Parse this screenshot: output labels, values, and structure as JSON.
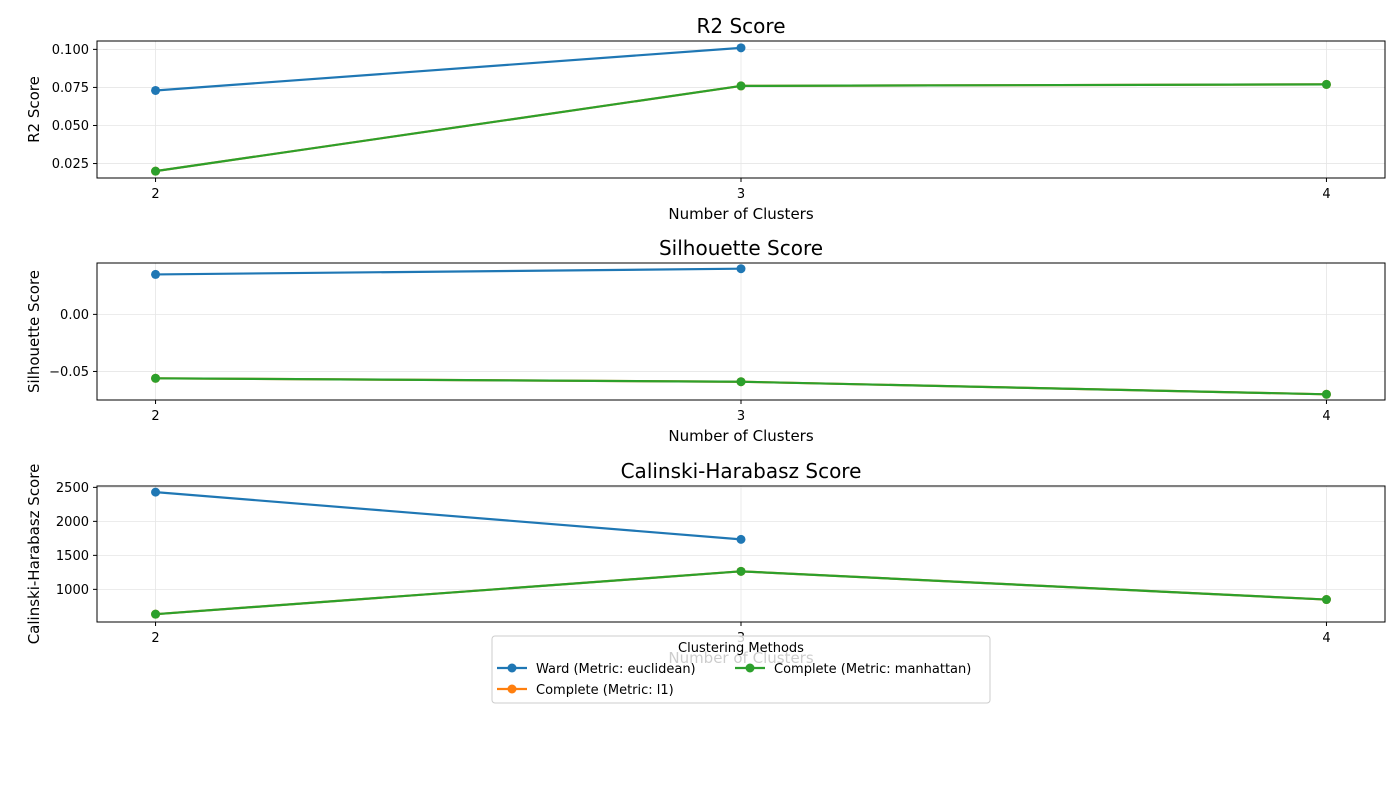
{
  "legend": {
    "title": "Clustering Methods",
    "placement": "lower-center"
  },
  "chart_data": [
    {
      "type": "line",
      "title": "R2 Score",
      "xlabel": "Number of Clusters",
      "ylabel": "R2 Score",
      "x": [
        2,
        3,
        4
      ],
      "xlim": [
        1.9,
        4.1
      ],
      "ylim": [
        0.0155,
        0.1055
      ],
      "yticks": [
        0.025,
        0.05,
        0.075,
        0.1
      ],
      "ytick_labels": [
        "0.025",
        "0.050",
        "0.075",
        "0.100"
      ],
      "grid": true,
      "series": [
        {
          "name": "Ward (Metric: euclidean)",
          "color": "#1f77b4",
          "values": [
            0.073,
            0.101,
            null
          ]
        },
        {
          "name": "Complete (Metric: l1)",
          "color": "#ff7f0e",
          "values": [
            0.02,
            0.076,
            0.077
          ]
        },
        {
          "name": "Complete (Metric: manhattan)",
          "color": "#2ca02c",
          "values": [
            0.02,
            0.076,
            0.077
          ]
        }
      ]
    },
    {
      "type": "line",
      "title": "Silhouette Score",
      "xlabel": "Number of Clusters",
      "ylabel": "Silhouette Score",
      "x": [
        2,
        3,
        4
      ],
      "xlim": [
        1.9,
        4.1
      ],
      "ylim": [
        -0.075,
        0.045
      ],
      "yticks": [
        -0.05,
        0.0
      ],
      "ytick_labels": [
        "−0.05",
        "0.00"
      ],
      "grid": true,
      "series": [
        {
          "name": "Ward (Metric: euclidean)",
          "color": "#1f77b4",
          "values": [
            0.035,
            0.04,
            null
          ]
        },
        {
          "name": "Complete (Metric: l1)",
          "color": "#ff7f0e",
          "values": [
            -0.056,
            -0.059,
            -0.07
          ]
        },
        {
          "name": "Complete (Metric: manhattan)",
          "color": "#2ca02c",
          "values": [
            -0.056,
            -0.059,
            -0.07
          ]
        }
      ]
    },
    {
      "type": "line",
      "title": "Calinski-Harabasz Score",
      "xlabel": "Number of Clusters",
      "ylabel": "Calinski-Harabasz Score",
      "x": [
        2,
        3,
        4
      ],
      "xlim": [
        1.9,
        4.1
      ],
      "ylim": [
        520,
        2520
      ],
      "yticks": [
        1000,
        1500,
        2000,
        2500
      ],
      "ytick_labels": [
        "1000",
        "1500",
        "2000",
        "2500"
      ],
      "grid": true,
      "series": [
        {
          "name": "Ward (Metric: euclidean)",
          "color": "#1f77b4",
          "values": [
            2430,
            1735,
            null
          ]
        },
        {
          "name": "Complete (Metric: l1)",
          "color": "#ff7f0e",
          "values": [
            635,
            1265,
            850
          ]
        },
        {
          "name": "Complete (Metric: manhattan)",
          "color": "#2ca02c",
          "values": [
            635,
            1265,
            850
          ]
        }
      ]
    }
  ]
}
